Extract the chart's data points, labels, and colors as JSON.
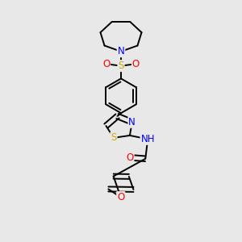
{
  "bg_color": "#e8e8e8",
  "atom_colors": {
    "C": "#000000",
    "N": "#0000ff",
    "O": "#ff0000",
    "S": "#ccaa00",
    "H": "#333333"
  },
  "bond_color": "#000000",
  "bond_width": 1.4,
  "font_size": 8.5,
  "figsize": [
    3.0,
    3.0
  ],
  "dpi": 100
}
